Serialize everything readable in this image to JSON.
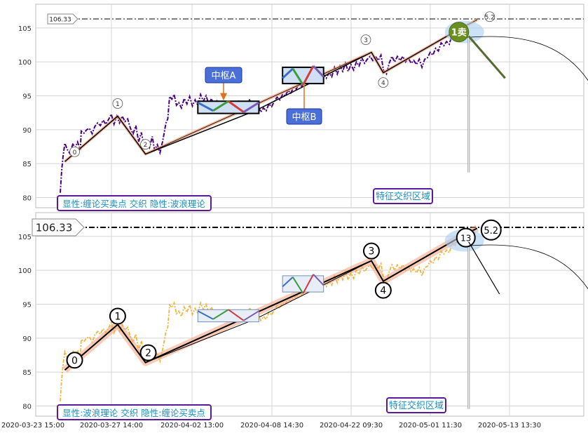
{
  "chart_data": [
    {
      "type": "line",
      "panel": "top",
      "ylim": [
        78.5,
        108.5
      ],
      "y_ticks": [
        80,
        85,
        90,
        95,
        100,
        105
      ],
      "price_series": [
        [
          0,
          80.7
        ],
        [
          0.3,
          84
        ],
        [
          0.6,
          86
        ],
        [
          1,
          88
        ],
        [
          1.6,
          87
        ],
        [
          2.1,
          86.5
        ],
        [
          2.8,
          88
        ],
        [
          3.2,
          87.2
        ],
        [
          3.8,
          88.2
        ],
        [
          4.4,
          87
        ],
        [
          4.6,
          89.8
        ],
        [
          5.2,
          89.5
        ],
        [
          5.8,
          90
        ],
        [
          6.4,
          90.2
        ],
        [
          7,
          89.4
        ],
        [
          7.6,
          90.5
        ],
        [
          8.2,
          91
        ],
        [
          8.8,
          90.6
        ],
        [
          9.4,
          91.4
        ],
        [
          10,
          90.8
        ],
        [
          10.6,
          91.5
        ],
        [
          11.2,
          92.3
        ],
        [
          11.8,
          90.8
        ],
        [
          12.4,
          92
        ],
        [
          13,
          91
        ],
        [
          13.6,
          92
        ],
        [
          14.2,
          91.2
        ],
        [
          14.8,
          91.6
        ],
        [
          15.4,
          90.2
        ],
        [
          16,
          89.4
        ],
        [
          16.6,
          90.6
        ],
        [
          17.2,
          88.2
        ],
        [
          17.8,
          89.6
        ],
        [
          18.4,
          87.6
        ],
        [
          19,
          88.4
        ],
        [
          19.6,
          87.4
        ],
        [
          20.2,
          89
        ],
        [
          20.7,
          87
        ],
        [
          21.3,
          87.8
        ],
        [
          21.9,
          86.6
        ],
        [
          22.5,
          88.4
        ],
        [
          23.2,
          91
        ],
        [
          23.6,
          91.6
        ],
        [
          24,
          94.9
        ],
        [
          24.5,
          94.5
        ],
        [
          25,
          95.2
        ],
        [
          25.5,
          93.6
        ],
        [
          26,
          94
        ],
        [
          26.6,
          93.2
        ],
        [
          27.2,
          94.6
        ],
        [
          27.8,
          93.8
        ],
        [
          28.4,
          94.9
        ],
        [
          29,
          93.5
        ],
        [
          29.6,
          94.4
        ],
        [
          30.2,
          93.6
        ],
        [
          30.8,
          95.2
        ],
        [
          31.4,
          94.2
        ],
        [
          32,
          95
        ],
        [
          32.6,
          93.8
        ],
        [
          33.2,
          94.6
        ],
        [
          33.8,
          93.4
        ],
        [
          34.4,
          94.2
        ],
        [
          35,
          93.2
        ],
        [
          35.6,
          93.9
        ],
        [
          36.2,
          93
        ],
        [
          36.8,
          93.6
        ],
        [
          37.4,
          92.8
        ],
        [
          38,
          93.8
        ],
        [
          38.6,
          93
        ],
        [
          39.2,
          94.1
        ],
        [
          39.8,
          93.2
        ],
        [
          40.4,
          94
        ],
        [
          41,
          93.4
        ],
        [
          41.6,
          94.5
        ],
        [
          42.2,
          93.4
        ],
        [
          42.8,
          92.8
        ],
        [
          43.4,
          93.6
        ],
        [
          44,
          92.6
        ],
        [
          44.6,
          93.2
        ],
        [
          45.2,
          92.8
        ],
        [
          45.8,
          93.8
        ],
        [
          46.4,
          93.4
        ],
        [
          47,
          94.2
        ],
        [
          47.6,
          94.8
        ],
        [
          48.2,
          94.4
        ],
        [
          48.8,
          95.2
        ],
        [
          49.4,
          95
        ],
        [
          50,
          95.8
        ],
        [
          50.6,
          95.4
        ],
        [
          51.2,
          96.2
        ],
        [
          51.8,
          96
        ],
        [
          52.4,
          96.8
        ],
        [
          53,
          96.4
        ],
        [
          53.6,
          97
        ],
        [
          54.2,
          97.6
        ],
        [
          54.8,
          97.2
        ],
        [
          55.4,
          97.8
        ],
        [
          56,
          97.2
        ],
        [
          56.6,
          98.4
        ],
        [
          57.2,
          97.8
        ],
        [
          57.8,
          98.2
        ],
        [
          58.4,
          97.6
        ],
        [
          59,
          98.4
        ],
        [
          59.6,
          97.8
        ],
        [
          60.2,
          99.2
        ],
        [
          60.8,
          98.2
        ],
        [
          61.4,
          99.4
        ],
        [
          62,
          98.6
        ],
        [
          62.6,
          99.8
        ],
        [
          63.2,
          98.6
        ],
        [
          63.8,
          99.6
        ],
        [
          64.4,
          98.8
        ],
        [
          65,
          100
        ],
        [
          65.6,
          99.4
        ],
        [
          66.2,
          100.6
        ],
        [
          66.8,
          99.8
        ],
        [
          67.4,
          100.4
        ],
        [
          68,
          100.8
        ],
        [
          68.6,
          100.2
        ],
        [
          69.2,
          100.8
        ],
        [
          69.8,
          100.2
        ],
        [
          70.4,
          101
        ],
        [
          71,
          98.6
        ],
        [
          71.6,
          98.2
        ],
        [
          72.2,
          99.8
        ],
        [
          72.8,
          100.8
        ],
        [
          73.4,
          100
        ],
        [
          74,
          100.8
        ],
        [
          74.6,
          100.2
        ],
        [
          75.2,
          100.8
        ],
        [
          75.8,
          100
        ],
        [
          76.4,
          100.6
        ],
        [
          77,
          99.8
        ],
        [
          77.6,
          100.2
        ],
        [
          78.2,
          99.6
        ],
        [
          78.8,
          100.4
        ],
        [
          79.4,
          99.2
        ],
        [
          80,
          100.4
        ],
        [
          80.6,
          100.6
        ],
        [
          81.2,
          101.4
        ],
        [
          81.8,
          101
        ],
        [
          82.4,
          102
        ],
        [
          83,
          101.6
        ],
        [
          83.6,
          102.8
        ],
        [
          84.2,
          102.4
        ],
        [
          84.8,
          103
        ],
        [
          85.4,
          102.6
        ],
        [
          86,
          104
        ],
        [
          86.6,
          103.6
        ],
        [
          87.2,
          104.4
        ]
      ],
      "chan_segments": [
        [
          1,
          85.3
        ],
        [
          12.6,
          92
        ],
        [
          18.7,
          86.4
        ],
        [
          42.8,
          92.8
        ],
        [
          68.3,
          101.4
        ],
        [
          70.9,
          98.4
        ],
        [
          87.5,
          104.8
        ]
      ],
      "wave_segments": [
        [
          1,
          85.3
        ],
        [
          12.6,
          92
        ],
        [
          18.7,
          86.4
        ],
        [
          68.3,
          101.4
        ],
        [
          70.9,
          98.4
        ],
        [
          87.5,
          104.8
        ],
        [
          91.5,
          106.2
        ]
      ],
      "labels": {
        "wave_labels": [
          "0",
          "1",
          "2",
          "3",
          "4",
          "5.2"
        ],
        "zs_a": "中枢A",
        "zs_b": "中枢B",
        "sell": "1卖",
        "zone": "特征交织区域",
        "legend": "显性:缠论买卖点 交织 隐性:波浪理论",
        "price": "106.33"
      }
    },
    {
      "type": "line",
      "panel": "bottom",
      "ylim": [
        78.5,
        108.5
      ],
      "y_ticks": [
        80,
        85,
        90,
        95,
        100,
        105
      ],
      "labels": {
        "wave_labels": [
          "0",
          "1",
          "2",
          "3",
          "4",
          "5.2"
        ],
        "overlap": "13",
        "zone": "特征交织区域",
        "legend": "显性:波浪理论 交织 隐性:缠论买卖点",
        "price": "106.33"
      }
    }
  ],
  "x_axis": {
    "tick_labels": [
      "2020-03-23 15:00",
      "2020-03-27 14:00",
      "2020-04-02 13:00",
      "2020-04-08 14:30",
      "2020-04-22 09:30",
      "2020-05-01 11:30",
      "2020-05-13 13:30"
    ]
  },
  "colors": {
    "price_top": "#4b0082",
    "price_bottom": "#f0a81a",
    "wave_band": "#f4a07a",
    "zs_box": "#4472c4",
    "sell_fill": "#6b8e23",
    "legend_border": "#5a1a9a",
    "legend_text": "#1a8fc4"
  }
}
